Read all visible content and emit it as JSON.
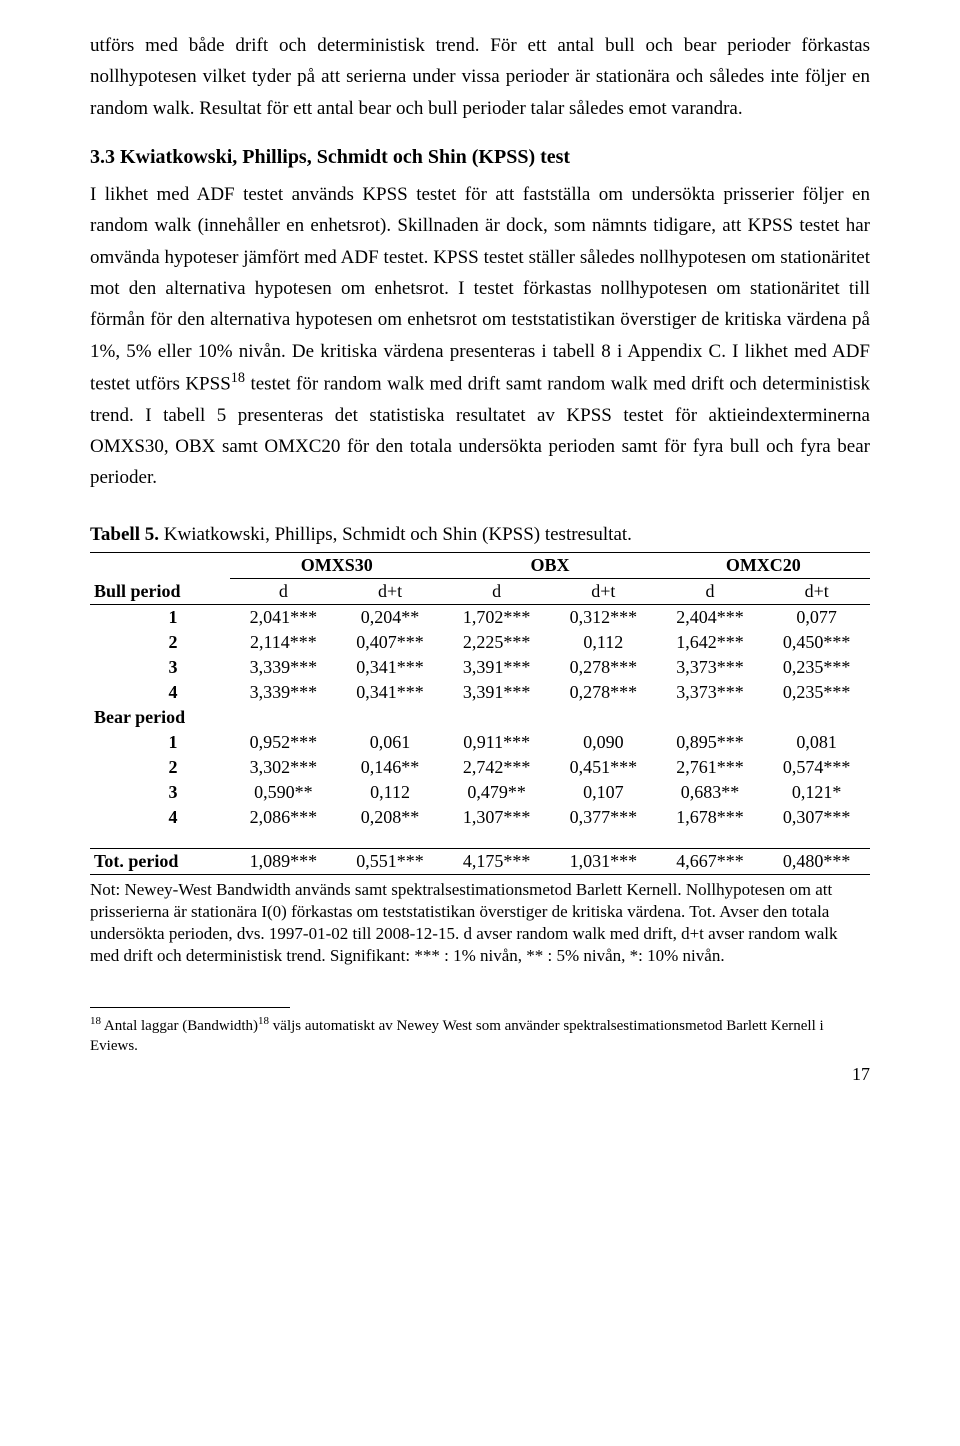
{
  "text": {
    "para1": "utförs med både drift och deterministisk trend. För ett antal bull och bear perioder förkastas nollhypotesen vilket tyder på att serierna under vissa perioder är stationära och således inte följer en random walk. Resultat för ett antal bear och bull perioder talar således emot varandra.",
    "section_heading": "3.3 Kwiatkowski, Phillips, Schmidt och Shin (KPSS) test",
    "para2_a": "I likhet med ADF testet används KPSS testet för att fastställa om undersökta prisserier följer en random walk (innehåller en enhetsrot). Skillnaden är dock, som nämnts tidigare, att KPSS testet har omvända hypoteser jämfört med ADF testet. KPSS testet ställer således nollhypotesen om stationäritet mot den alternativa hypotesen om enhetsrot. I testet förkastas nollhypotesen om stationäritet till förmån för den alternativa hypotesen om enhetsrot om teststatistikan överstiger de kritiska värdena på 1%, 5% eller 10% nivån. De kritiska värdena presenteras i tabell 8 i Appendix C. I likhet med ADF testet utförs KPSS",
    "para2_sup": "18",
    "para2_b": " testet för random walk med drift samt random walk med drift och deterministisk trend. I tabell 5 presenteras det statistiska resultatet av KPSS testet för aktieindexterminerna OMXS30, OBX samt OMXC20 för den totala undersökta perioden samt för fyra bull och fyra bear perioder.",
    "table_caption_bold": "Tabell 5.",
    "table_caption_rest": " Kwiatkowski, Phillips, Schmidt och Shin (KPSS) testresultat.",
    "note": "Not: Newey-West Bandwidth används samt spektralsestimationsmetod Barlett Kernell. Nollhypotesen om att prisserierna är stationära I(0) förkastas om teststatistikan överstiger de kritiska värdena. Tot. Avser den totala undersökta perioden, dvs. 1997-01-02 till 2008-12-15. d avser random walk med drift, d+t avser random walk med drift och deterministisk trend. Signifikant: *** : 1% nivån, ** : 5% nivån, *: 10% nivån.",
    "footnote_num": "18",
    "footnote_text_a": " Antal laggar (Bandwidth)",
    "footnote_sup": "18",
    "footnote_text_b": " väljs automatiskt av Newey West som använder spektralsestimationsmetod Barlett Kernell i Eviews.",
    "page_number": "17"
  },
  "table": {
    "group_headers": [
      "OMXS30",
      "OBX",
      "OMXC20"
    ],
    "sub_headers": [
      "d",
      "d+t",
      "d",
      "d+t",
      "d",
      "d+t"
    ],
    "row_labels": {
      "bull": "Bull period",
      "bear": "Bear period",
      "tot": "Tot. period"
    },
    "bull_rows": [
      {
        "n": "1",
        "cells": [
          "2,041***",
          "0,204**",
          "1,702***",
          "0,312***",
          "2,404***",
          "0,077"
        ]
      },
      {
        "n": "2",
        "cells": [
          "2,114***",
          "0,407***",
          "2,225***",
          "0,112",
          "1,642***",
          "0,450***"
        ]
      },
      {
        "n": "3",
        "cells": [
          "3,339***",
          "0,341***",
          "3,391***",
          "0,278***",
          "3,373***",
          "0,235***"
        ]
      },
      {
        "n": "4",
        "cells": [
          "3,339***",
          "0,341***",
          "3,391***",
          "0,278***",
          "3,373***",
          "0,235***"
        ]
      }
    ],
    "bear_rows": [
      {
        "n": "1",
        "cells": [
          "0,952***",
          "0,061",
          "0,911***",
          "0,090",
          "0,895***",
          "0,081"
        ]
      },
      {
        "n": "2",
        "cells": [
          "3,302***",
          "0,146**",
          "2,742***",
          "0,451***",
          "2,761***",
          "0,574***"
        ]
      },
      {
        "n": "3",
        "cells": [
          "0,590**",
          "0,112",
          "0,479**",
          "0,107",
          "0,683**",
          "0,121*"
        ]
      },
      {
        "n": "4",
        "cells": [
          "2,086***",
          "0,208**",
          "1,307***",
          "0,377***",
          "1,678***",
          "0,307***"
        ]
      }
    ],
    "tot_row": [
      "1,089***",
      "0,551***",
      "4,175***",
      "1,031***",
      "4,667***",
      "0,480***"
    ],
    "styling": {
      "font_size_pt": 18,
      "border_color": "#000000",
      "background": "#ffffff",
      "text_color": "#000000",
      "col_align": "center",
      "label_align": "left"
    }
  }
}
